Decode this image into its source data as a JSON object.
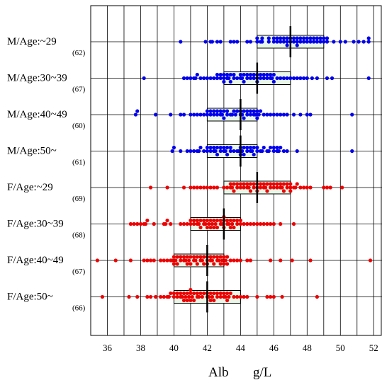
{
  "chart_data": {
    "type": "scatter",
    "subtype": "dot-plot with box",
    "title": "",
    "xlabel": "Alb",
    "xunit": "g/L",
    "xlim": [
      35,
      52.5
    ],
    "xticks": [
      36,
      38,
      40,
      42,
      44,
      46,
      48,
      50,
      52
    ],
    "grid": true,
    "legend": "none",
    "groups": [
      {
        "label": "M/Age:~29",
        "n": "(62)",
        "color": "#0000ee",
        "median": 47,
        "q1": 45,
        "q3": 49,
        "values": [
          40.4,
          41.9,
          42.2,
          42.3,
          42.6,
          42.8,
          43.4,
          43.8,
          44.4,
          44.6,
          45,
          45,
          45.3,
          45.3,
          45.7,
          45.7,
          46,
          46,
          46.2,
          46.2,
          46.4,
          46.4,
          46.6,
          46.6,
          46.8,
          46.8,
          46.8,
          47,
          47,
          47.2,
          47.2,
          47.4,
          47.4,
          47.4,
          47.6,
          47.6,
          47.8,
          47.8,
          48,
          48,
          48.2,
          48.2,
          48.4,
          48.4,
          48.6,
          48.6,
          48.8,
          48.8,
          49,
          49,
          49.2,
          49.2,
          49.6,
          50,
          50.3,
          50.8,
          51.1,
          51.4,
          51.7,
          51.7,
          43.6,
          45.2
        ]
      },
      {
        "label": "M/Age:30~39",
        "n": "(67)",
        "color": "#0000ee",
        "median": 45,
        "q1": 43,
        "q3": 47,
        "values": [
          38.2,
          40.6,
          40.8,
          41,
          41.2,
          41.4,
          41.6,
          41.8,
          42,
          42.2,
          42.4,
          42.6,
          42.6,
          42.8,
          42.8,
          43,
          43,
          43,
          43.2,
          43.2,
          43.4,
          43.4,
          43.6,
          43.6,
          43.8,
          44,
          44,
          44.2,
          44.2,
          44.4,
          44.4,
          44.6,
          44.6,
          44.8,
          44.8,
          45,
          45,
          45,
          45.2,
          45.2,
          45.4,
          45.4,
          45.6,
          45.6,
          45.8,
          45.8,
          46,
          46,
          46.2,
          46.4,
          46.6,
          46.8,
          47,
          47.2,
          47.4,
          47.6,
          47.8,
          48,
          48.3,
          48.6,
          49.2,
          49.5,
          51.7,
          41.3,
          43.3,
          44.1,
          45.9
        ]
      },
      {
        "label": "M/Age:40~49",
        "n": "(60)",
        "color": "#0000ee",
        "median": 44,
        "q1": 42,
        "q3": 45,
        "values": [
          37.7,
          37.8,
          38.9,
          39.8,
          40.4,
          40.6,
          41,
          41.4,
          41.6,
          41.8,
          42,
          42,
          42.2,
          42.2,
          42.4,
          42.4,
          42.6,
          42.6,
          42.8,
          42.8,
          43,
          43,
          43.2,
          43.2,
          43.4,
          43.6,
          43.8,
          44,
          44,
          44.2,
          44.2,
          44.4,
          44.4,
          44.6,
          44.6,
          44.8,
          44.8,
          45,
          45,
          45.2,
          45.4,
          45.6,
          45.8,
          46,
          46.2,
          46.4,
          46.8,
          47.2,
          47.6,
          48,
          48.2,
          50.7,
          43.5,
          44.9,
          41.2,
          42.9,
          45.1,
          43.7,
          44.1,
          46.6
        ]
      },
      {
        "label": "M/Age:50~",
        "n": "(61)",
        "color": "#0000ee",
        "median": 44,
        "q1": 42,
        "q3": 45,
        "values": [
          39.9,
          40,
          40.4,
          40.8,
          41,
          41.2,
          41.4,
          41.6,
          41.8,
          42,
          42,
          42.2,
          42.2,
          42.4,
          42.4,
          42.6,
          42.6,
          42.8,
          42.8,
          43,
          43,
          43.2,
          43.2,
          43.4,
          43.4,
          43.6,
          43.8,
          44,
          44,
          44.2,
          44.2,
          44.4,
          44.4,
          44.6,
          44.6,
          44.8,
          44.8,
          45,
          45,
          45.2,
          45.4,
          45.6,
          45.8,
          46,
          46,
          46.2,
          46.2,
          46.4,
          46.6,
          46.8,
          47.4,
          50.7,
          43.1,
          43.9,
          45.3,
          45.7,
          44.1,
          41.5,
          42.5,
          44.7,
          46.3
        ]
      },
      {
        "label": "F/Age:~29",
        "n": "(69)",
        "color": "#ee0000",
        "median": 45,
        "q1": 43,
        "q3": 47,
        "values": [
          38.6,
          39.6,
          40.6,
          41,
          41.2,
          41.4,
          41.6,
          41.8,
          42,
          42.2,
          42.4,
          42.6,
          43,
          43.2,
          43.4,
          43.4,
          43.6,
          43.6,
          43.8,
          43.8,
          44,
          44,
          44.2,
          44.2,
          44.4,
          44.4,
          44.6,
          44.6,
          44.8,
          44.8,
          45,
          45,
          45,
          45.2,
          45.2,
          45.4,
          45.4,
          45.6,
          45.6,
          45.8,
          45.8,
          46,
          46,
          46.2,
          46.2,
          46.4,
          46.4,
          46.6,
          46.6,
          46.8,
          46.8,
          47,
          47,
          47,
          47.2,
          47.4,
          47.6,
          47.8,
          48,
          48.2,
          49,
          49.2,
          49.4,
          50.1,
          43.5,
          44.5,
          45.5,
          46.5,
          47.3
        ]
      },
      {
        "label": "F/Age:30~39",
        "n": "(68)",
        "color": "#ee0000",
        "median": 43,
        "q1": 41,
        "q3": 44,
        "values": [
          37.4,
          37.6,
          37.8,
          38,
          38.2,
          38.4,
          38.8,
          39.4,
          39.6,
          39.8,
          40.4,
          40.6,
          40.8,
          41,
          41,
          41.2,
          41.2,
          41.4,
          41.4,
          41.6,
          41.6,
          41.8,
          41.8,
          42,
          42,
          42.2,
          42.2,
          42.4,
          42.4,
          42.6,
          42.6,
          42.8,
          42.8,
          43,
          43,
          43,
          43.2,
          43.2,
          43.4,
          43.4,
          43.6,
          43.6,
          43.8,
          43.8,
          44,
          44,
          44.2,
          44.6,
          44.8,
          45,
          45.2,
          45.6,
          45.8,
          46,
          46.4,
          47.2,
          38.3,
          39.5,
          41.5,
          42.5,
          43.5,
          42.1,
          42.9,
          43.3,
          41.9,
          42.3,
          45.4,
          44.4
        ]
      },
      {
        "label": "F/Age:40~49",
        "n": "(67)",
        "color": "#ee0000",
        "median": 42,
        "q1": 40,
        "q3": 43,
        "values": [
          35.4,
          36.5,
          37.4,
          38.2,
          38.4,
          38.6,
          38.8,
          39.2,
          39.4,
          39.6,
          39.8,
          40,
          40,
          40.2,
          40.2,
          40.4,
          40.4,
          40.6,
          40.6,
          40.8,
          40.8,
          41,
          41,
          41.2,
          41.2,
          41.4,
          41.4,
          41.6,
          41.6,
          41.8,
          41.8,
          42,
          42,
          42,
          42.2,
          42.2,
          42.4,
          42.4,
          42.6,
          42.6,
          42.8,
          42.8,
          43,
          43,
          43.2,
          43.2,
          43.4,
          43.6,
          43.8,
          44,
          44.4,
          44.6,
          45.8,
          46.4,
          47.1,
          48.2,
          51.8,
          40.1,
          40.9,
          41.3,
          41.7,
          42.3,
          42.9,
          43.1,
          39.9,
          40.7,
          42.7
        ]
      },
      {
        "label": "F/Age:50~",
        "n": "(66)",
        "color": "#ee0000",
        "median": 42,
        "q1": 40,
        "q3": 44,
        "values": [
          35.7,
          37.3,
          37.8,
          38.4,
          38.6,
          38.9,
          39.4,
          39.6,
          39.8,
          40,
          40,
          40.2,
          40.2,
          40.4,
          40.4,
          40.6,
          40.6,
          40.8,
          40.8,
          41,
          41,
          41,
          41.2,
          41.2,
          41.4,
          41.4,
          41.6,
          41.8,
          42,
          42,
          42.2,
          42.2,
          42.4,
          42.4,
          42.6,
          42.6,
          42.8,
          42.8,
          43,
          43,
          43.2,
          43.2,
          43.4,
          43.6,
          43.8,
          44,
          44.2,
          44.4,
          45,
          45.6,
          45.8,
          46.5,
          48.6,
          40.9,
          41.1,
          40.5,
          40.7,
          39.2,
          39.7,
          42.1,
          42.3,
          43.1,
          43.3,
          41.5,
          41.7,
          46
        ]
      }
    ]
  }
}
